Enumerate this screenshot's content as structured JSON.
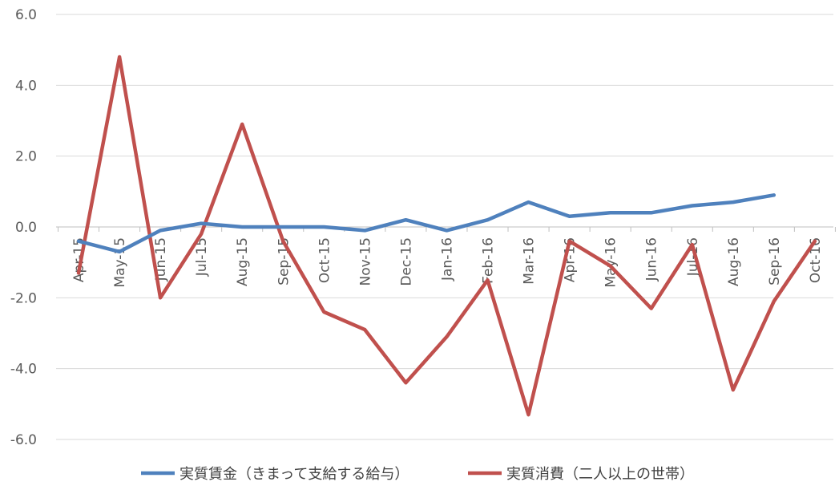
{
  "chart_data": {
    "type": "line",
    "categories": [
      "Apr-15",
      "May-15",
      "Jun-15",
      "Jul-15",
      "Aug-15",
      "Sep-15",
      "Oct-15",
      "Nov-15",
      "Dec-15",
      "Jan-16",
      "Feb-16",
      "Mar-16",
      "Apr-16",
      "May-16",
      "Jun-16",
      "Jul-16",
      "Aug-16",
      "Sep-16",
      "Oct-16"
    ],
    "y_ticks": [
      "6.0",
      "4.0",
      "2.0",
      "0.0",
      "-2.0",
      "-4.0",
      "-6.0"
    ],
    "ylim": [
      -6,
      6
    ],
    "grid": true,
    "legend_position": "bottom",
    "series": [
      {
        "name": "実質賃金（きまって支給する給与）",
        "color": "#4f81bd",
        "values": [
          -0.4,
          -0.7,
          -0.1,
          0.1,
          0.0,
          0.0,
          0.0,
          -0.1,
          0.2,
          -0.1,
          0.2,
          0.7,
          0.3,
          0.4,
          0.4,
          0.6,
          0.7,
          0.9,
          null
        ]
      },
      {
        "name": "実質消費（二人以上の世帯）",
        "color": "#c0504d",
        "values": [
          -1.3,
          4.8,
          -2.0,
          -0.2,
          2.9,
          -0.4,
          -2.4,
          -2.9,
          -4.4,
          -3.1,
          -1.5,
          -5.3,
          -0.4,
          -1.1,
          -2.3,
          -0.5,
          -4.6,
          -2.1,
          -0.4
        ]
      }
    ]
  }
}
